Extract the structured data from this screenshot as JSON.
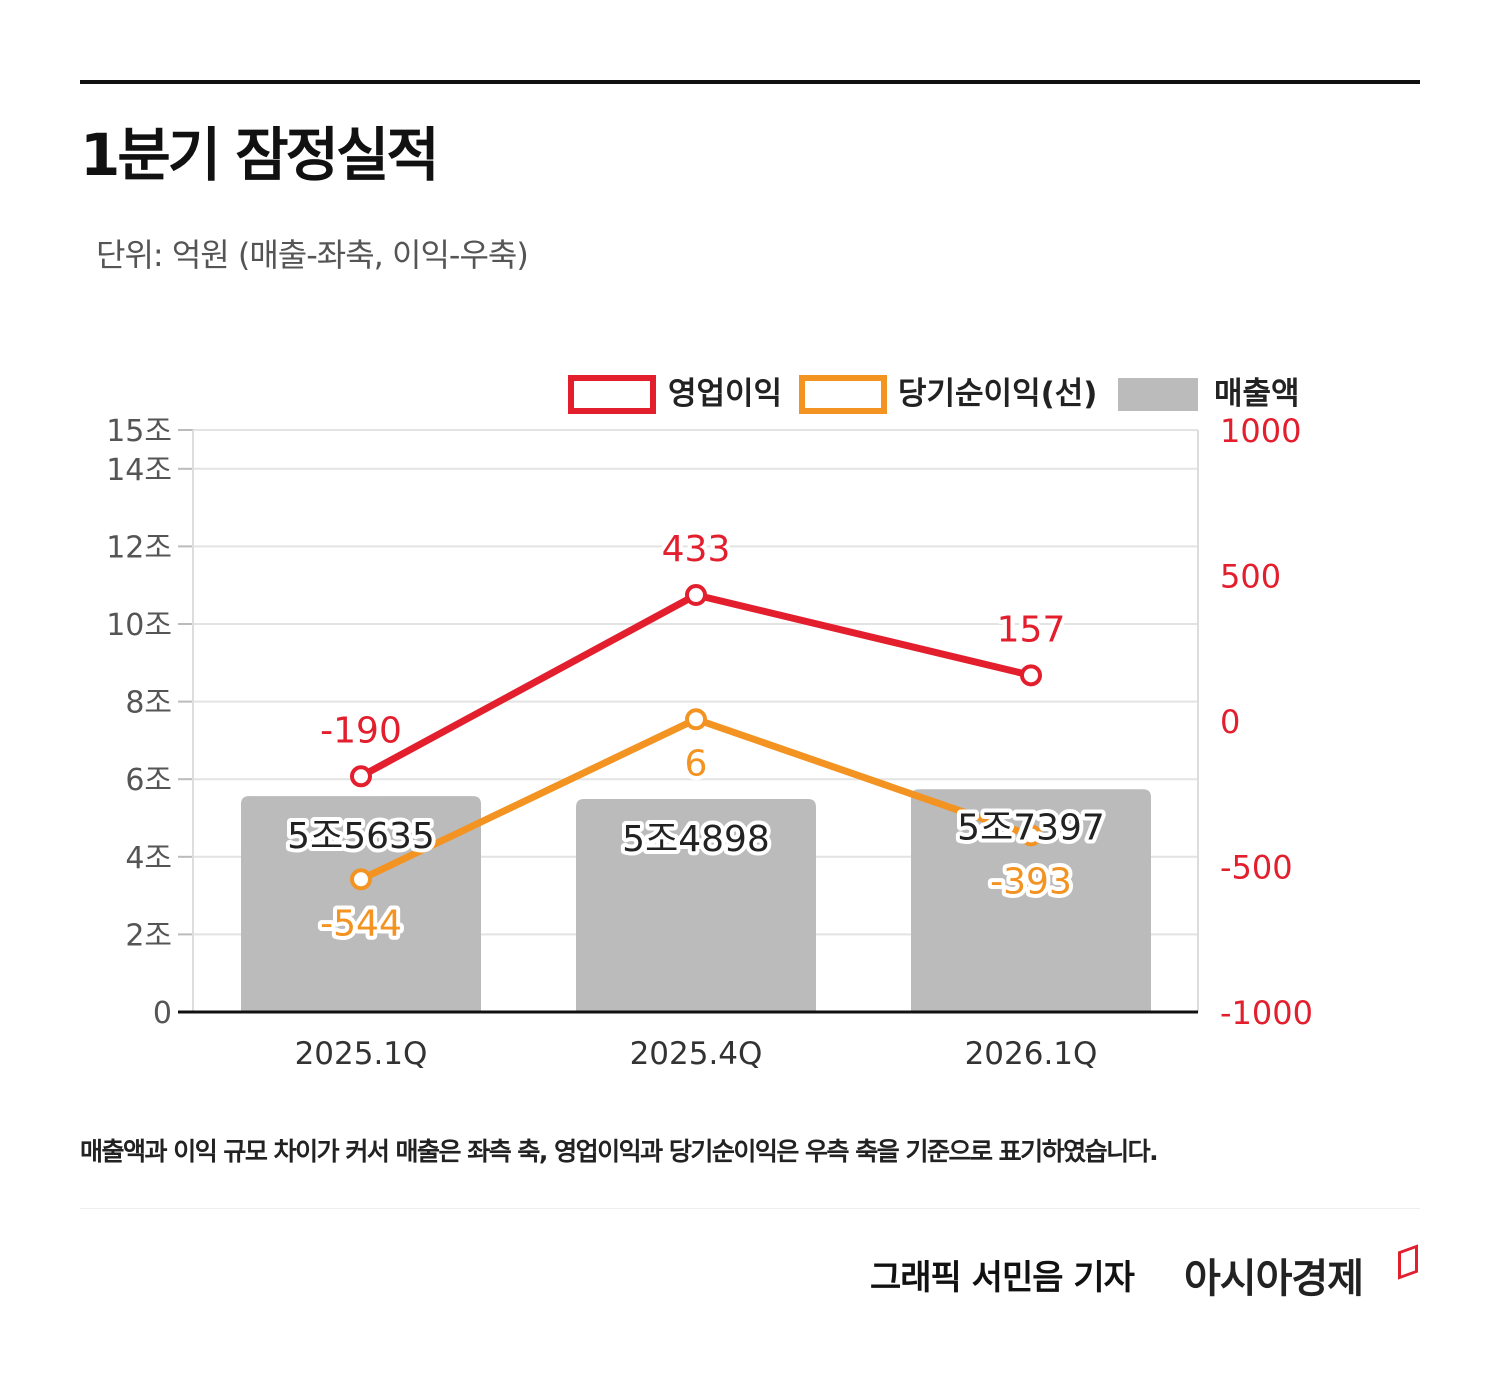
{
  "title": "1분기 잠정실적",
  "unit": "단위: 억원 (매출-좌축, 이익-우축)",
  "note": "매출액과 이익 규모 차이가 커서 매출은 좌측 축, 영업이익과 당기순이익은 우측 축을 기준으로 표기하였습니다.",
  "credit": "그래픽  서민음 기자",
  "brand": "아시아경제",
  "chart_data": {
    "type": "bar+line",
    "categories": [
      "2025.1Q",
      "2025.4Q",
      "2026.1Q"
    ],
    "left_axis": {
      "ticks": [
        "0",
        "2조",
        "4조",
        "6조",
        "8조",
        "10조",
        "12조",
        "14조",
        "15조"
      ],
      "tick_values": [
        0,
        2,
        4,
        6,
        8,
        10,
        12,
        14,
        15
      ],
      "ylim": [
        0,
        15
      ],
      "unit": "조"
    },
    "right_axis": {
      "ticks": [
        "-1000",
        "-500",
        "0",
        "500",
        "1000"
      ],
      "tick_values": [
        -1000,
        -500,
        0,
        500,
        1000
      ],
      "ylim": [
        -1000,
        1000
      ],
      "color": "#e31e2d"
    },
    "grid": true,
    "legend_placement": "top-right",
    "series": [
      {
        "name": "영업이익",
        "type": "line",
        "axis": "right",
        "color": "#e31e2d",
        "values": [
          -190,
          433,
          157
        ],
        "labels": [
          "-190",
          "433",
          "157"
        ]
      },
      {
        "name": "당기순이익(선)",
        "type": "line",
        "axis": "right",
        "color": "#f39322",
        "values": [
          -544,
          6,
          -393
        ],
        "labels": [
          "-544",
          "6",
          "-393"
        ]
      },
      {
        "name": "매출액",
        "type": "bar",
        "axis": "left",
        "color": "#bbbbbb",
        "values": [
          5.5635,
          5.4898,
          5.7397
        ],
        "labels": [
          "5조5635",
          "5조4898",
          "5조7397"
        ]
      }
    ]
  }
}
